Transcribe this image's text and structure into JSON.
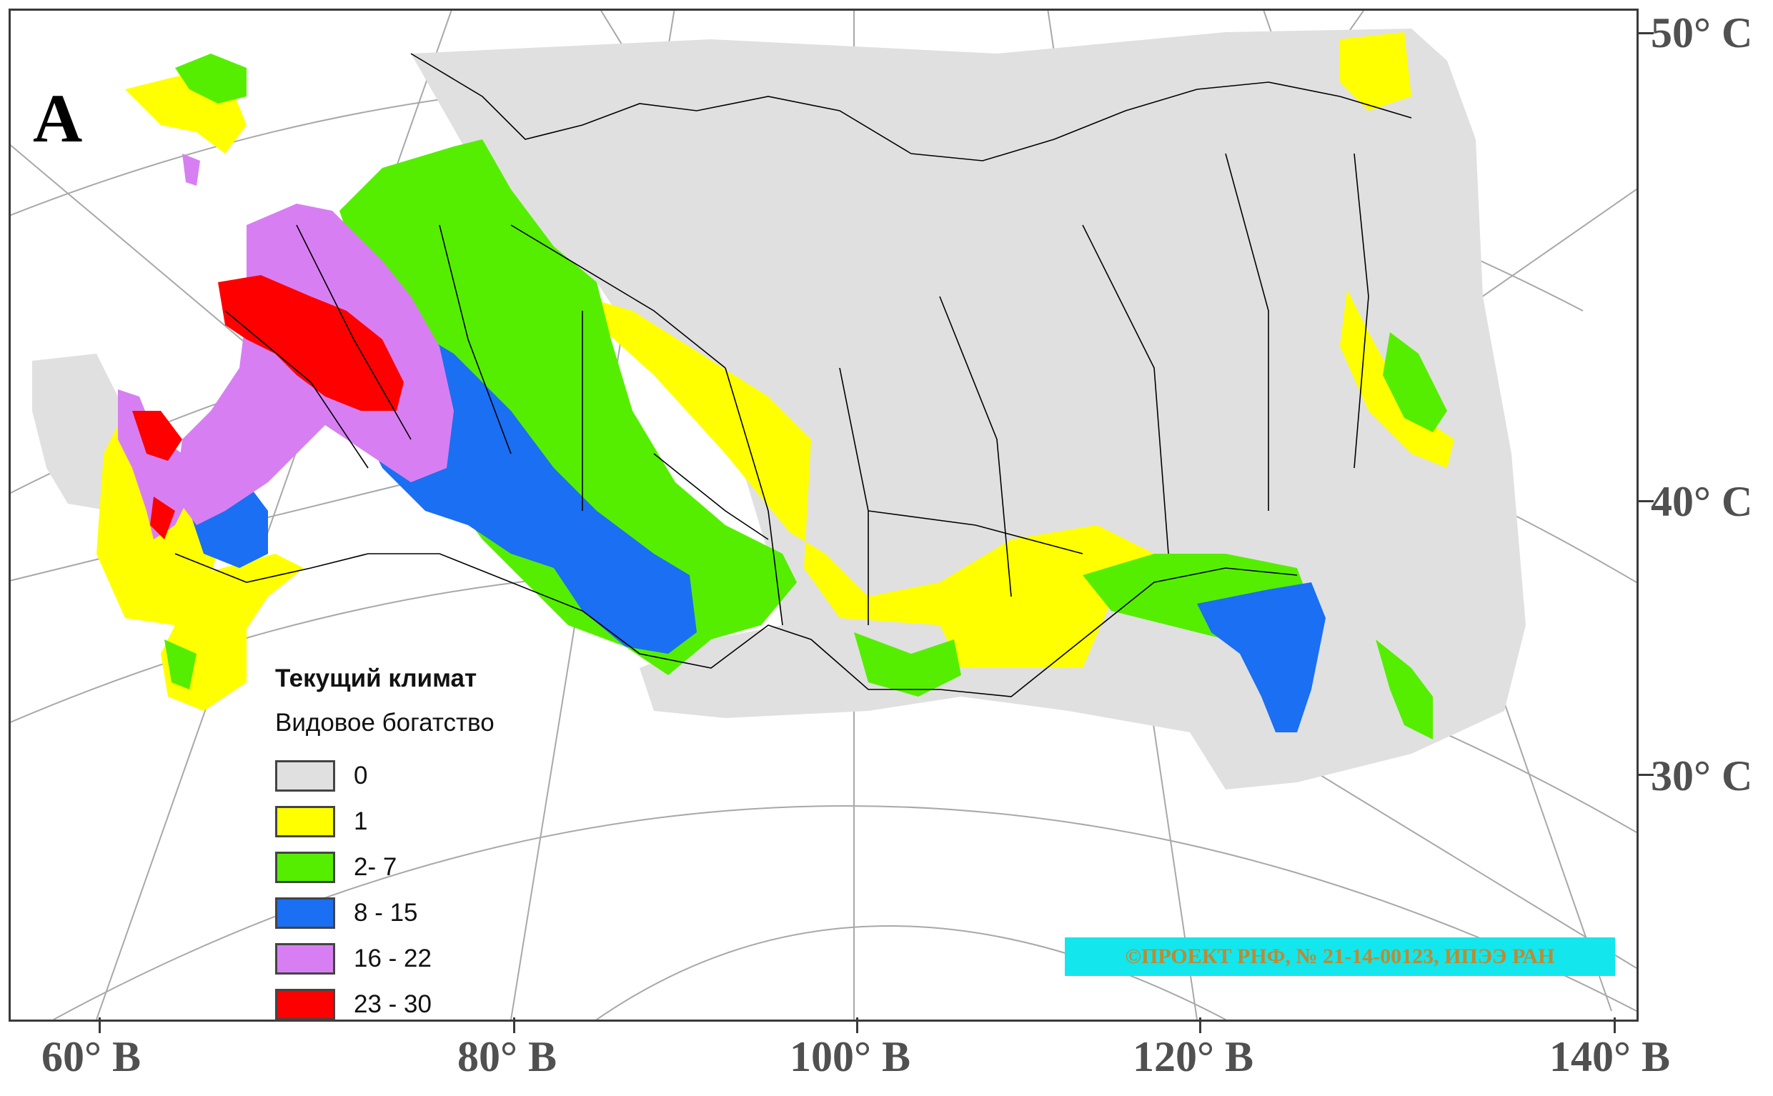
{
  "panel_letter": "A",
  "latitude_labels": [
    {
      "id": "lat-50",
      "text": "50° С"
    },
    {
      "id": "lat-40",
      "text": "40° С"
    },
    {
      "id": "lat-30",
      "text": "30° С"
    }
  ],
  "longitude_labels": [
    {
      "id": "lon-60",
      "text": "60° В"
    },
    {
      "id": "lon-80",
      "text": "80° В"
    },
    {
      "id": "lon-100",
      "text": "100° В"
    },
    {
      "id": "lon-120",
      "text": "120° В"
    },
    {
      "id": "lon-140",
      "text": "140° В"
    }
  ],
  "legend": {
    "title": "Текущий климат",
    "subtitle": "Видовое богатство",
    "items": [
      {
        "label": "0",
        "color": "#e0e0e0"
      },
      {
        "label": "1",
        "color": "#ffff00"
      },
      {
        "label": "2- 7",
        "color": "#55ee00"
      },
      {
        "label": "8 - 15",
        "color": "#1a6ff2"
      },
      {
        "label": "16 - 22",
        "color": "#d77ff2"
      },
      {
        "label": "23 - 30",
        "color": "#ff0000"
      }
    ]
  },
  "credit": "©ПРОЕКТ РНФ, № 21-14-00123, ИПЭЭ РАН"
}
